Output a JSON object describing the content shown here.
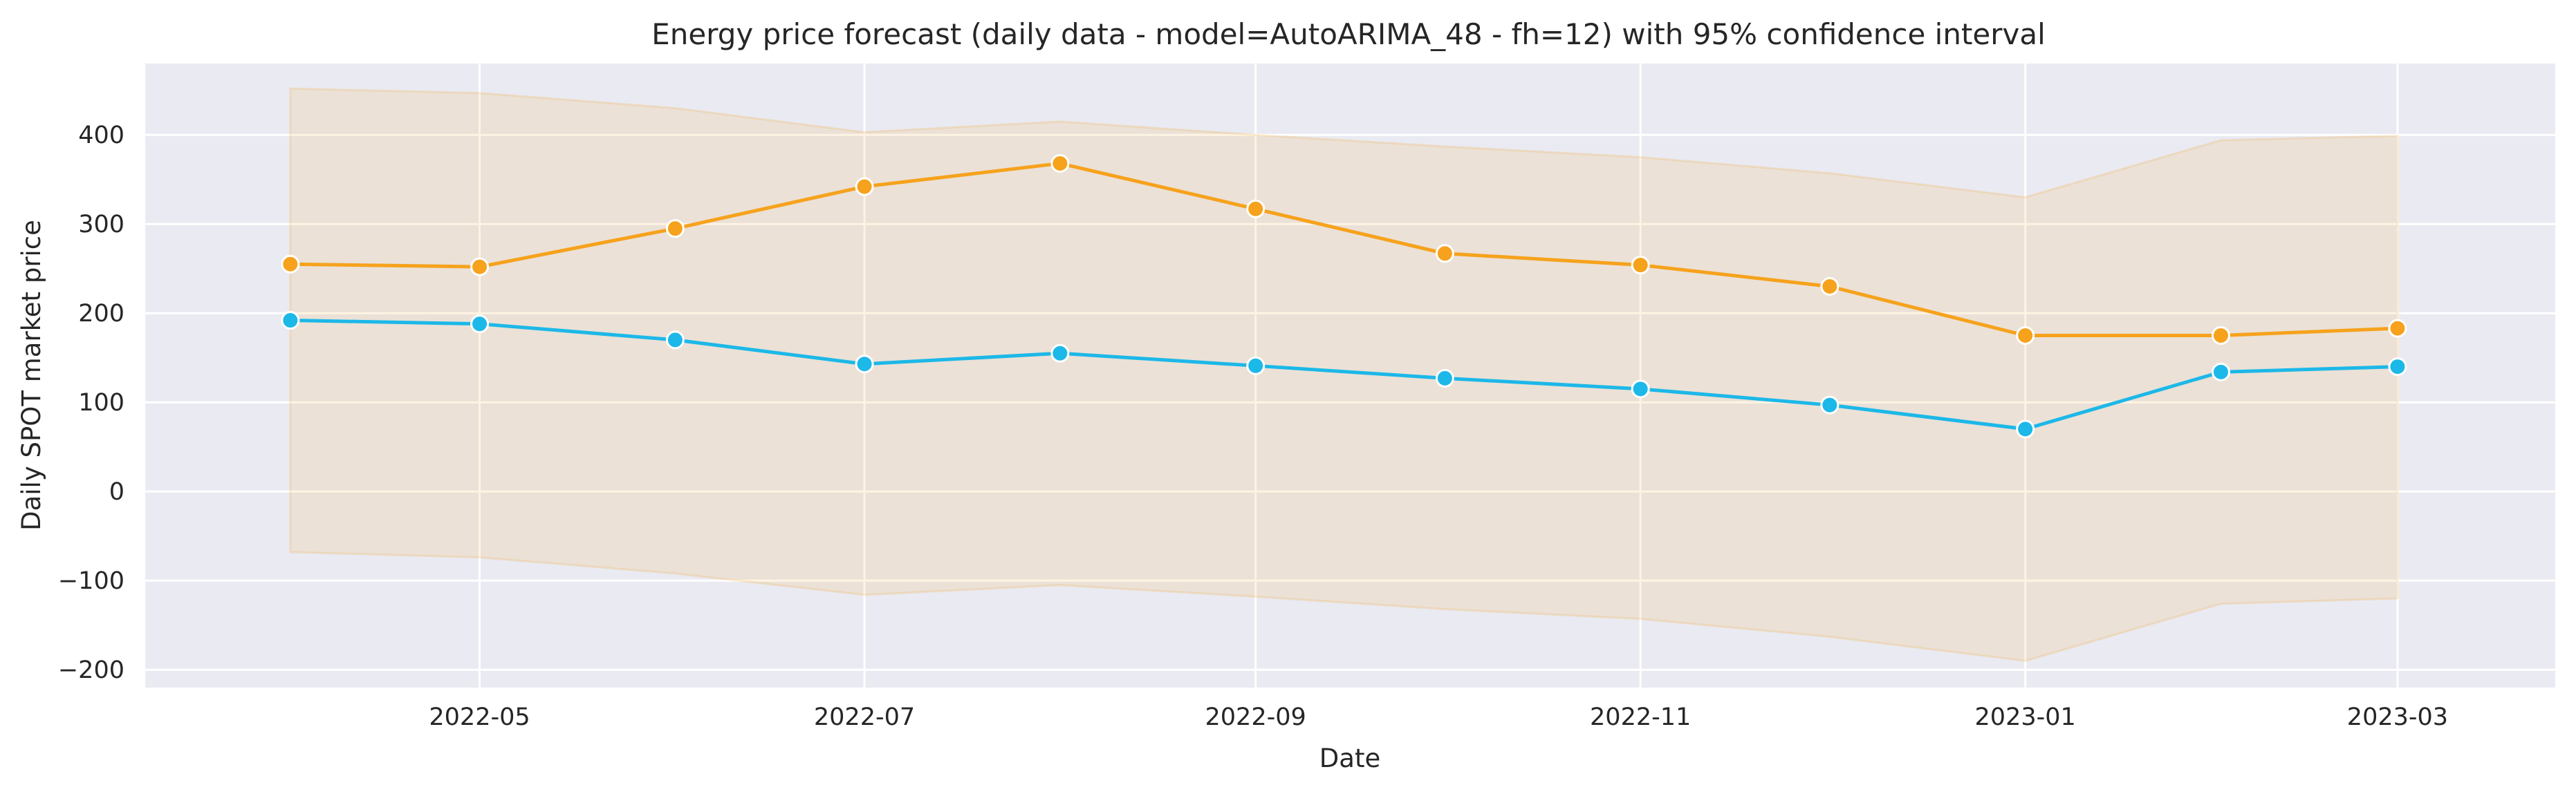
{
  "chart_data": {
    "type": "line",
    "title": "Energy price forecast (daily data - model=AutoARIMA_48 - fh=12) with 95% confidence interval",
    "xlabel": "Date",
    "ylabel": "Daily SPOT market price",
    "x": [
      "2022-04-01",
      "2022-05-01",
      "2022-06-01",
      "2022-07-01",
      "2022-08-01",
      "2022-09-01",
      "2022-10-01",
      "2022-11-01",
      "2022-12-01",
      "2023-01-01",
      "2023-02-01",
      "2023-03-01"
    ],
    "xlim": [
      "2022-03-09",
      "2023-03-26"
    ],
    "x_ticks": [
      "2022-05",
      "2022-07",
      "2022-09",
      "2022-11",
      "2023-01",
      "2023-03"
    ],
    "y_ticks": [
      -200,
      -100,
      0,
      100,
      200,
      300,
      400
    ],
    "ylim": [
      -220,
      480
    ],
    "grid": true,
    "series": [
      {
        "color": "#1cb8e8",
        "marker": "circle",
        "values": [
          192,
          188,
          170,
          143,
          155,
          141,
          127,
          115,
          97,
          70,
          134,
          140
        ]
      },
      {
        "color": "#f6a21c",
        "marker": "circle",
        "values": [
          255,
          252,
          295,
          342,
          368,
          317,
          267,
          254,
          230,
          175,
          175,
          183
        ]
      }
    ],
    "confidence_band": {
      "fill": "#f6a21c",
      "opacity": 0.12,
      "upper": [
        452,
        447,
        430,
        403,
        415,
        400,
        387,
        375,
        357,
        330,
        394,
        399
      ],
      "lower": [
        -68,
        -74,
        -92,
        -116,
        -105,
        -118,
        -132,
        -143,
        -163,
        -190,
        -126,
        -120
      ]
    }
  }
}
